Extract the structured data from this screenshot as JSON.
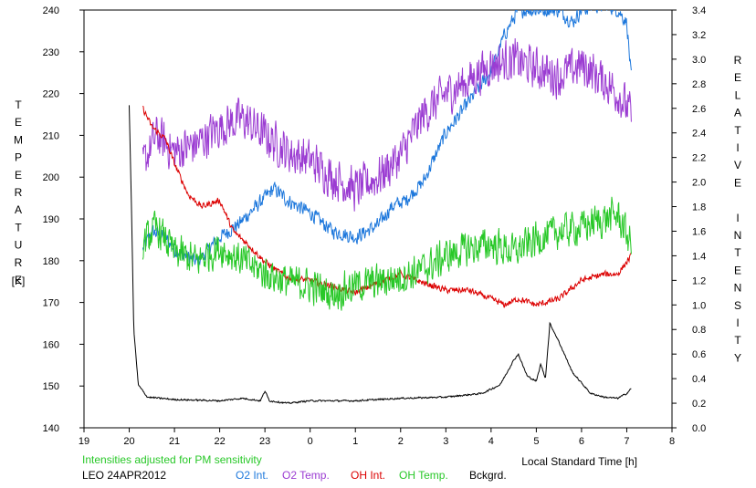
{
  "chart_data": {
    "type": "line",
    "source_label": "LEO 24APR2012",
    "note": "Intensities adjusted for PM sensitivity",
    "xlabel": "Local Standard Time [h]",
    "ylabel_left": "TEMPERATURE",
    "ylabel_left_unit": "[K]",
    "ylabel_right": "RELATIVE INTENSITY",
    "xlim": [
      19,
      8
    ],
    "x_ticks": [
      "19",
      "20",
      "21",
      "22",
      "23",
      "0",
      "1",
      "2",
      "3",
      "4",
      "5",
      "6",
      "7",
      "8"
    ],
    "ylim_left": [
      140,
      240
    ],
    "y_left_ticks": [
      "140",
      "150",
      "160",
      "170",
      "180",
      "190",
      "200",
      "210",
      "220",
      "230",
      "240"
    ],
    "ylim_right": [
      0.0,
      3.4
    ],
    "y_right_ticks": [
      "0.0",
      "0.2",
      "0.4",
      "0.6",
      "0.8",
      "1.0",
      "1.2",
      "1.4",
      "1.6",
      "1.8",
      "2.0",
      "2.2",
      "2.4",
      "2.6",
      "2.8",
      "3.0",
      "3.2",
      "3.4"
    ],
    "series": [
      {
        "name": "O2 Int.",
        "axis": "right",
        "color": "#1e78dc",
        "noise": 0.07,
        "points": [
          [
            20.3,
            1.45
          ],
          [
            20.5,
            1.6
          ],
          [
            20.8,
            1.55
          ],
          [
            21.0,
            1.45
          ],
          [
            21.5,
            1.35
          ],
          [
            22.0,
            1.55
          ],
          [
            22.4,
            1.65
          ],
          [
            22.8,
            1.8
          ],
          [
            23.2,
            1.95
          ],
          [
            23.5,
            1.85
          ],
          [
            24.0,
            1.75
          ],
          [
            24.5,
            1.6
          ],
          [
            25.0,
            1.55
          ],
          [
            25.5,
            1.65
          ],
          [
            25.8,
            1.8
          ],
          [
            26.1,
            1.85
          ],
          [
            26.5,
            2.0
          ],
          [
            27.0,
            2.4
          ],
          [
            27.5,
            2.65
          ],
          [
            28.0,
            2.9
          ],
          [
            28.3,
            3.2
          ],
          [
            28.6,
            3.4
          ],
          [
            29.0,
            3.4
          ],
          [
            29.5,
            3.4
          ],
          [
            29.8,
            3.3
          ],
          [
            30.0,
            3.4
          ],
          [
            30.5,
            3.45
          ],
          [
            30.8,
            3.4
          ],
          [
            31.0,
            3.3
          ],
          [
            31.1,
            2.85
          ]
        ]
      },
      {
        "name": "O2 Temp.",
        "axis": "left",
        "color": "#9b3cd2",
        "noise": 6,
        "points": [
          [
            20.3,
            203
          ],
          [
            20.6,
            210
          ],
          [
            21.0,
            206
          ],
          [
            21.5,
            208
          ],
          [
            22.0,
            212
          ],
          [
            22.5,
            214
          ],
          [
            23.0,
            210
          ],
          [
            23.5,
            206
          ],
          [
            24.0,
            204
          ],
          [
            24.5,
            200
          ],
          [
            25.0,
            197
          ],
          [
            25.5,
            200
          ],
          [
            26.0,
            205
          ],
          [
            26.5,
            215
          ],
          [
            27.0,
            220
          ],
          [
            27.5,
            223
          ],
          [
            28.0,
            227
          ],
          [
            28.5,
            228
          ],
          [
            29.0,
            226
          ],
          [
            29.5,
            224
          ],
          [
            30.0,
            227
          ],
          [
            30.5,
            223
          ],
          [
            30.8,
            220
          ],
          [
            31.1,
            215
          ]
        ]
      },
      {
        "name": "OH Int.",
        "axis": "right",
        "color": "#dc0000",
        "noise": 0.03,
        "points": [
          [
            20.3,
            2.6
          ],
          [
            20.5,
            2.45
          ],
          [
            20.8,
            2.35
          ],
          [
            21.0,
            2.15
          ],
          [
            21.3,
            1.9
          ],
          [
            21.6,
            1.8
          ],
          [
            22.0,
            1.85
          ],
          [
            22.3,
            1.6
          ],
          [
            22.6,
            1.5
          ],
          [
            23.0,
            1.35
          ],
          [
            23.5,
            1.22
          ],
          [
            24.0,
            1.2
          ],
          [
            24.5,
            1.15
          ],
          [
            25.0,
            1.1
          ],
          [
            25.5,
            1.18
          ],
          [
            26.0,
            1.25
          ],
          [
            26.5,
            1.18
          ],
          [
            27.0,
            1.12
          ],
          [
            27.5,
            1.12
          ],
          [
            28.0,
            1.05
          ],
          [
            28.3,
            1.0
          ],
          [
            28.6,
            1.05
          ],
          [
            29.0,
            1.0
          ],
          [
            29.5,
            1.05
          ],
          [
            30.0,
            1.2
          ],
          [
            30.5,
            1.25
          ],
          [
            30.8,
            1.25
          ],
          [
            31.1,
            1.4
          ]
        ]
      },
      {
        "name": "OH Temp.",
        "axis": "left",
        "color": "#28c828",
        "noise": 5,
        "points": [
          [
            20.3,
            184
          ],
          [
            20.6,
            188
          ],
          [
            21.0,
            182
          ],
          [
            21.5,
            180
          ],
          [
            22.0,
            183
          ],
          [
            22.5,
            180
          ],
          [
            23.0,
            177
          ],
          [
            23.5,
            175
          ],
          [
            24.0,
            174
          ],
          [
            24.5,
            172
          ],
          [
            25.0,
            174
          ],
          [
            25.5,
            175
          ],
          [
            26.0,
            176
          ],
          [
            26.5,
            178
          ],
          [
            27.0,
            181
          ],
          [
            27.5,
            183
          ],
          [
            28.0,
            184
          ],
          [
            28.5,
            182
          ],
          [
            29.0,
            185
          ],
          [
            29.5,
            187
          ],
          [
            30.0,
            188
          ],
          [
            30.5,
            190
          ],
          [
            30.8,
            191
          ],
          [
            31.1,
            184
          ]
        ]
      },
      {
        "name": "Bckgrd.",
        "axis": "right",
        "color": "#000000",
        "noise": 0.008,
        "points": [
          [
            20.0,
            2.62
          ],
          [
            20.05,
            1.8
          ],
          [
            20.1,
            0.8
          ],
          [
            20.2,
            0.35
          ],
          [
            20.4,
            0.25
          ],
          [
            21.0,
            0.23
          ],
          [
            22.0,
            0.22
          ],
          [
            22.5,
            0.24
          ],
          [
            22.9,
            0.22
          ],
          [
            23.0,
            0.3
          ],
          [
            23.1,
            0.22
          ],
          [
            23.5,
            0.2
          ],
          [
            24.0,
            0.22
          ],
          [
            25.0,
            0.22
          ],
          [
            26.0,
            0.24
          ],
          [
            27.0,
            0.25
          ],
          [
            27.8,
            0.28
          ],
          [
            28.2,
            0.35
          ],
          [
            28.5,
            0.55
          ],
          [
            28.6,
            0.6
          ],
          [
            28.8,
            0.42
          ],
          [
            29.0,
            0.38
          ],
          [
            29.1,
            0.52
          ],
          [
            29.2,
            0.4
          ],
          [
            29.3,
            0.85
          ],
          [
            29.5,
            0.7
          ],
          [
            29.8,
            0.45
          ],
          [
            30.2,
            0.28
          ],
          [
            30.5,
            0.25
          ],
          [
            30.8,
            0.24
          ],
          [
            31.0,
            0.28
          ],
          [
            31.1,
            0.32
          ]
        ]
      }
    ]
  }
}
